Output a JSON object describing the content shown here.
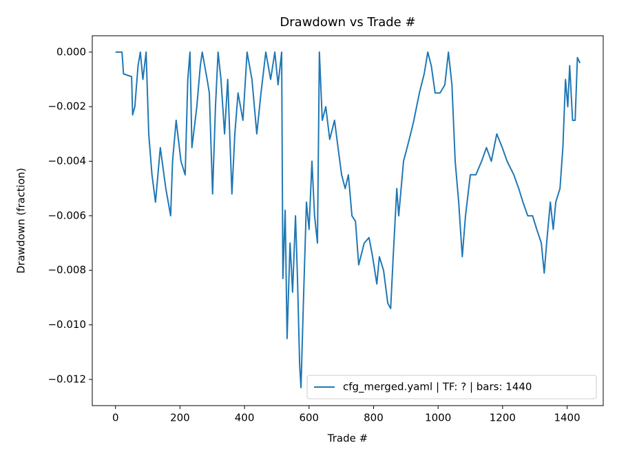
{
  "chart_data": {
    "type": "line",
    "title": "Drawdown vs Trade #",
    "xlabel": "Trade #",
    "ylabel": "Drawdown (fraction)",
    "x": [
      0,
      20,
      22,
      25,
      50,
      53,
      60,
      70,
      77,
      85,
      95,
      103,
      113,
      124,
      139,
      156,
      171,
      177,
      188,
      203,
      216,
      224,
      231,
      237,
      252,
      263,
      269,
      284,
      291,
      301,
      310,
      318,
      327,
      338,
      348,
      361,
      370,
      380,
      395,
      408,
      423,
      438,
      451,
      466,
      481,
      494,
      504,
      515,
      519,
      526,
      532,
      541,
      549,
      558,
      564,
      571,
      575,
      583,
      592,
      600,
      609,
      617,
      626,
      632,
      641,
      652,
      664,
      679,
      690,
      701,
      712,
      722,
      733,
      744,
      754,
      771,
      786,
      797,
      810,
      818,
      831,
      844,
      853,
      861,
      872,
      878,
      893,
      904,
      915,
      925,
      942,
      957,
      968,
      979,
      991,
      1006,
      1021,
      1032,
      1043,
      1053,
      1064,
      1075,
      1085,
      1100,
      1117,
      1135,
      1150,
      1165,
      1182,
      1199,
      1214,
      1235,
      1250,
      1263,
      1278,
      1293,
      1306,
      1320,
      1329,
      1338,
      1348,
      1357,
      1365,
      1378,
      1387,
      1395,
      1402,
      1408,
      1417,
      1425,
      1432,
      1440
    ],
    "series": [
      {
        "name": "cfg_merged.yaml | TF: ? | bars: 1440",
        "color": "#1f77b4",
        "values": [
          0,
          0,
          -0.0003,
          -0.0008,
          -0.0009,
          -0.0023,
          -0.002,
          -0.0005,
          0,
          -0.001,
          0,
          -0.003,
          -0.0045,
          -0.0055,
          -0.0035,
          -0.005,
          -0.006,
          -0.004,
          -0.0025,
          -0.004,
          -0.0045,
          -0.001,
          0,
          -0.0035,
          -0.002,
          -0.0005,
          0,
          -0.001,
          -0.0015,
          -0.0052,
          -0.002,
          0,
          -0.001,
          -0.003,
          -0.001,
          -0.0052,
          -0.003,
          -0.0015,
          -0.0025,
          0,
          -0.001,
          -0.003,
          -0.0015,
          0,
          -0.001,
          0,
          -0.0012,
          0,
          -0.0083,
          -0.0058,
          -0.0105,
          -0.007,
          -0.0088,
          -0.006,
          -0.0082,
          -0.0115,
          -0.0123,
          -0.009,
          -0.0055,
          -0.0065,
          -0.004,
          -0.006,
          -0.007,
          0,
          -0.0025,
          -0.002,
          -0.0032,
          -0.0025,
          -0.0035,
          -0.0045,
          -0.005,
          -0.0045,
          -0.006,
          -0.0062,
          -0.0078,
          -0.007,
          -0.0068,
          -0.0075,
          -0.0085,
          -0.0075,
          -0.008,
          -0.0092,
          -0.0094,
          -0.0075,
          -0.005,
          -0.006,
          -0.004,
          -0.0035,
          -0.003,
          -0.0025,
          -0.0015,
          -0.0008,
          0,
          -0.0005,
          -0.0015,
          -0.0015,
          -0.0012,
          0,
          -0.0012,
          -0.004,
          -0.0055,
          -0.0075,
          -0.006,
          -0.0045,
          -0.0045,
          -0.004,
          -0.0035,
          -0.004,
          -0.003,
          -0.0035,
          -0.004,
          -0.0045,
          -0.005,
          -0.0055,
          -0.006,
          -0.006,
          -0.0065,
          -0.007,
          -0.0081,
          -0.0068,
          -0.0055,
          -0.0065,
          -0.0055,
          -0.005,
          -0.0035,
          -0.001,
          -0.002,
          -0.0005,
          -0.0025,
          -0.0025,
          -0.0002,
          -0.0004
        ]
      }
    ],
    "xlim": [
      -72,
      1512
    ],
    "ylim": [
      -0.01296,
      0.0006
    ],
    "xticks": [
      0,
      200,
      400,
      600,
      800,
      1000,
      1200,
      1400
    ],
    "yticks": [
      {
        "value": 0,
        "label": "0.000"
      },
      {
        "value": -0.002,
        "label": "−0.002"
      },
      {
        "value": -0.004,
        "label": "−0.004"
      },
      {
        "value": -0.006,
        "label": "−0.006"
      },
      {
        "value": -0.008,
        "label": "−0.008"
      },
      {
        "value": -0.01,
        "label": "−0.010"
      },
      {
        "value": -0.012,
        "label": "−0.012"
      }
    ],
    "legend": "lower right",
    "grid": false
  }
}
